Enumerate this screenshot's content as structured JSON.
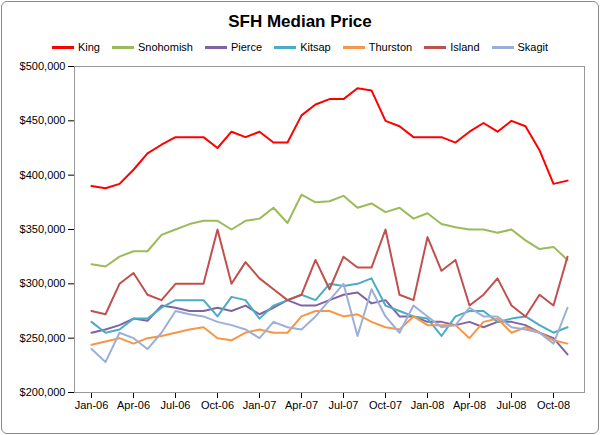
{
  "chart_data": {
    "type": "line",
    "title": "SFH Median Price",
    "categories": [
      "Jan-06",
      null,
      null,
      "Apr-06",
      null,
      null,
      "Jul-06",
      null,
      null,
      "Oct-06",
      null,
      null,
      "Jan-07",
      null,
      null,
      "Apr-07",
      null,
      null,
      "Jul-07",
      null,
      null,
      "Oct-07",
      null,
      null,
      "Jan-08",
      null,
      null,
      "Apr-08",
      null,
      null,
      "Jul-08",
      null,
      null,
      "Oct-08",
      null
    ],
    "series": [
      {
        "name": "King",
        "color": "#ff0000",
        "values": [
          390000,
          388000,
          392000,
          405000,
          420000,
          428000,
          435000,
          435000,
          435000,
          425000,
          440000,
          435000,
          440000,
          430000,
          430000,
          455000,
          465000,
          470000,
          470000,
          480000,
          478000,
          450000,
          445000,
          435000,
          435000,
          435000,
          430000,
          440000,
          448000,
          440000,
          450000,
          445000,
          423000,
          392000,
          395000
        ]
      },
      {
        "name": "Snohomish",
        "color": "#9bbb59",
        "values": [
          318000,
          316000,
          325000,
          330000,
          330000,
          345000,
          350000,
          355000,
          358000,
          358000,
          350000,
          358000,
          360000,
          370000,
          356000,
          382000,
          375000,
          376000,
          381000,
          370000,
          374000,
          366000,
          370000,
          360000,
          365000,
          355000,
          352000,
          350000,
          350000,
          347000,
          350000,
          340000,
          332000,
          334000,
          322000
        ]
      },
      {
        "name": "Pierce",
        "color": "#8064a2",
        "values": [
          255000,
          258000,
          262000,
          268000,
          266000,
          280000,
          278000,
          275000,
          275000,
          278000,
          275000,
          280000,
          272000,
          278000,
          285000,
          280000,
          280000,
          285000,
          290000,
          292000,
          282000,
          285000,
          270000,
          270000,
          265000,
          265000,
          262000,
          265000,
          260000,
          265000,
          265000,
          262000,
          255000,
          250000,
          235000
        ]
      },
      {
        "name": "Kitsap",
        "color": "#4bacc6",
        "values": [
          265000,
          255000,
          258000,
          268000,
          268000,
          278000,
          285000,
          285000,
          285000,
          270000,
          288000,
          285000,
          268000,
          280000,
          285000,
          290000,
          285000,
          300000,
          298000,
          300000,
          305000,
          280000,
          275000,
          270000,
          268000,
          252000,
          270000,
          275000,
          275000,
          265000,
          268000,
          270000,
          262000,
          255000,
          260000
        ]
      },
      {
        "name": "Thurston",
        "color": "#f79646",
        "values": [
          244000,
          247000,
          250000,
          245000,
          250000,
          252000,
          255000,
          258000,
          260000,
          250000,
          248000,
          255000,
          258000,
          255000,
          255000,
          270000,
          275000,
          275000,
          270000,
          272000,
          265000,
          260000,
          258000,
          270000,
          262000,
          262000,
          262000,
          250000,
          265000,
          268000,
          255000,
          260000,
          255000,
          248000,
          245000
        ]
      },
      {
        "name": "Island",
        "color": "#c0504d",
        "values": [
          275000,
          272000,
          300000,
          310000,
          290000,
          285000,
          300000,
          300000,
          300000,
          350000,
          300000,
          320000,
          305000,
          295000,
          285000,
          290000,
          322000,
          295000,
          325000,
          315000,
          315000,
          350000,
          290000,
          285000,
          343000,
          312000,
          322000,
          280000,
          290000,
          305000,
          280000,
          270000,
          290000,
          280000,
          325000
        ]
      },
      {
        "name": "Skagit",
        "color": "#9dafd8",
        "values": [
          240000,
          228000,
          255000,
          250000,
          240000,
          255000,
          275000,
          272000,
          270000,
          265000,
          262000,
          258000,
          250000,
          265000,
          260000,
          258000,
          270000,
          285000,
          300000,
          252000,
          295000,
          270000,
          255000,
          280000,
          270000,
          260000,
          262000,
          278000,
          270000,
          270000,
          260000,
          258000,
          255000,
          245000,
          278000
        ]
      }
    ],
    "ylim": [
      200000,
      500000
    ],
    "yticks": [
      {
        "value": 200000,
        "label": "$200,000"
      },
      {
        "value": 250000,
        "label": "$250,000"
      },
      {
        "value": 300000,
        "label": "$300,000"
      },
      {
        "value": 350000,
        "label": "$350,000"
      },
      {
        "value": 400000,
        "label": "$400,000"
      },
      {
        "value": 450000,
        "label": "$450,000"
      },
      {
        "value": 500000,
        "label": "$500,000"
      }
    ],
    "grid": false,
    "legend": "top"
  }
}
